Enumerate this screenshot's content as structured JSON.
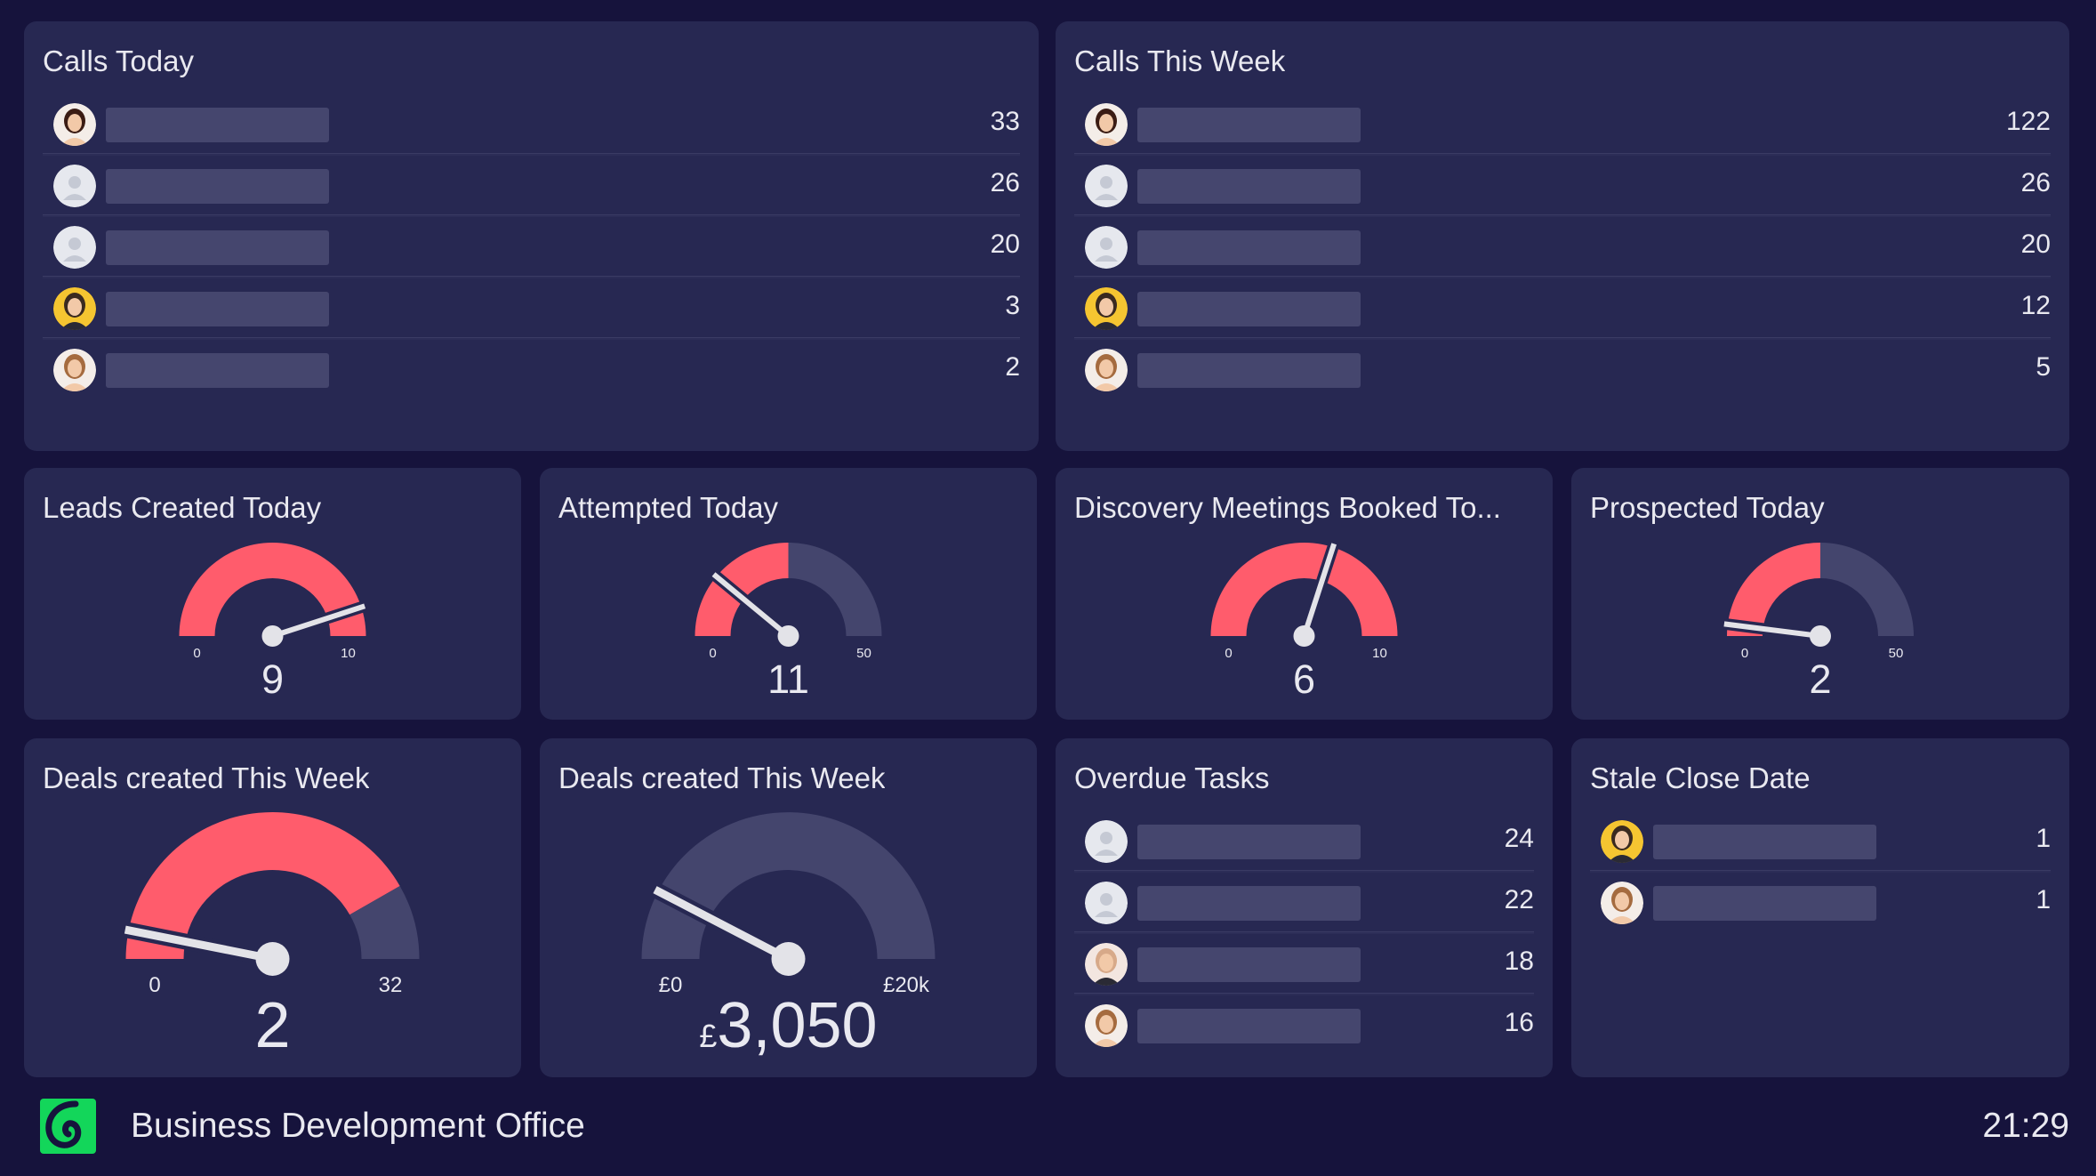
{
  "colors": {
    "background": "#16133c",
    "panel": "#272852",
    "highlight": "#ff5c6c",
    "track": "#44456d",
    "bar": "#45466e",
    "needle": "#e3e3e8",
    "text": "#e9e9f0",
    "logo": "#13d65a"
  },
  "lists": {
    "calls_today": {
      "title": "Calls Today",
      "rows": [
        {
          "avatar": "woman-photo-1",
          "count": "33"
        },
        {
          "avatar": "placeholder-user",
          "count": "26"
        },
        {
          "avatar": "placeholder-user",
          "count": "20"
        },
        {
          "avatar": "man-photo-yellow",
          "count": "3"
        },
        {
          "avatar": "woman-photo-2",
          "count": "2"
        }
      ]
    },
    "calls_week": {
      "title": "Calls This Week",
      "rows": [
        {
          "avatar": "woman-photo-1",
          "count": "122"
        },
        {
          "avatar": "placeholder-user",
          "count": "26"
        },
        {
          "avatar": "placeholder-user",
          "count": "20"
        },
        {
          "avatar": "man-photo-yellow",
          "count": "12"
        },
        {
          "avatar": "woman-photo-2",
          "count": "5"
        }
      ]
    },
    "overdue": {
      "title": "Overdue Tasks",
      "rows": [
        {
          "avatar": "placeholder-user",
          "count": "24"
        },
        {
          "avatar": "placeholder-user",
          "count": "22"
        },
        {
          "avatar": "man-photo-light",
          "count": "18"
        },
        {
          "avatar": "woman-photo-2",
          "count": "16"
        }
      ]
    },
    "stale": {
      "title": "Stale Close Date",
      "rows": [
        {
          "avatar": "man-photo-yellow",
          "count": "1"
        },
        {
          "avatar": "woman-photo-2",
          "count": "1"
        }
      ]
    }
  },
  "gauges": {
    "leads": {
      "title": "Leads Created Today",
      "min": 0,
      "max": 10,
      "value": 9,
      "highlight_to": 10,
      "min_label": "0",
      "max_label": "10",
      "value_label": "9",
      "currency": ""
    },
    "attempted": {
      "title": "Attempted Today",
      "min": 0,
      "max": 50,
      "value": 11,
      "highlight_to": 25,
      "min_label": "0",
      "max_label": "50",
      "value_label": "11",
      "currency": ""
    },
    "discovery": {
      "title": "Discovery Meetings Booked To...",
      "min": 0,
      "max": 10,
      "value": 6,
      "highlight_to": 10,
      "min_label": "0",
      "max_label": "10",
      "value_label": "6",
      "currency": ""
    },
    "prospected": {
      "title": "Prospected Today",
      "min": 0,
      "max": 50,
      "value": 2,
      "highlight_to": 25,
      "min_label": "0",
      "max_label": "50",
      "value_label": "2",
      "currency": ""
    },
    "deals_count": {
      "title": "Deals created This Week",
      "min": 0,
      "max": 32,
      "value": 2,
      "highlight_to": 26.7,
      "min_label": "0",
      "max_label": "32",
      "value_label": "2",
      "currency": ""
    },
    "deals_value": {
      "title": "Deals created This Week",
      "min": 0,
      "max": 20000,
      "value": 3050,
      "highlight_to": 0,
      "min_label": "£0",
      "max_label": "£20k",
      "value_label": "3,050",
      "currency": "£"
    }
  },
  "footer": {
    "logo_icon": "swirl-logo-icon",
    "title": "Business Development Office",
    "time": "21:29"
  }
}
